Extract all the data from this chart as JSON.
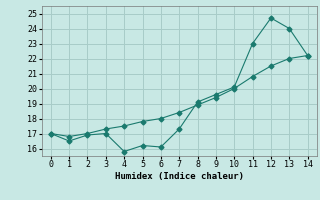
{
  "line1_x": [
    0,
    1,
    2,
    3,
    4,
    5,
    6,
    7,
    8,
    9,
    10,
    11,
    12,
    13,
    14
  ],
  "line1_y": [
    17.0,
    16.5,
    16.9,
    17.0,
    15.8,
    16.2,
    16.1,
    17.3,
    19.1,
    19.6,
    20.1,
    23.0,
    24.7,
    24.0,
    22.2
  ],
  "line2_x": [
    0,
    1,
    2,
    3,
    4,
    5,
    6,
    7,
    8,
    9,
    10,
    11,
    12,
    13,
    14
  ],
  "line2_y": [
    17.0,
    16.8,
    17.0,
    17.3,
    17.5,
    17.8,
    18.0,
    18.4,
    18.9,
    19.4,
    20.0,
    20.8,
    21.5,
    22.0,
    22.2
  ],
  "line_color": "#1a7a6e",
  "bg_color": "#c8e8e4",
  "grid_color": "#a8ccc8",
  "xlabel": "Humidex (Indice chaleur)",
  "xlim": [
    -0.5,
    14.5
  ],
  "ylim": [
    15.5,
    25.5
  ],
  "yticks": [
    16,
    17,
    18,
    19,
    20,
    21,
    22,
    23,
    24,
    25
  ],
  "xticks": [
    0,
    1,
    2,
    3,
    4,
    5,
    6,
    7,
    8,
    9,
    10,
    11,
    12,
    13,
    14
  ],
  "marker": "D",
  "markersize": 2.5,
  "linewidth": 0.8
}
